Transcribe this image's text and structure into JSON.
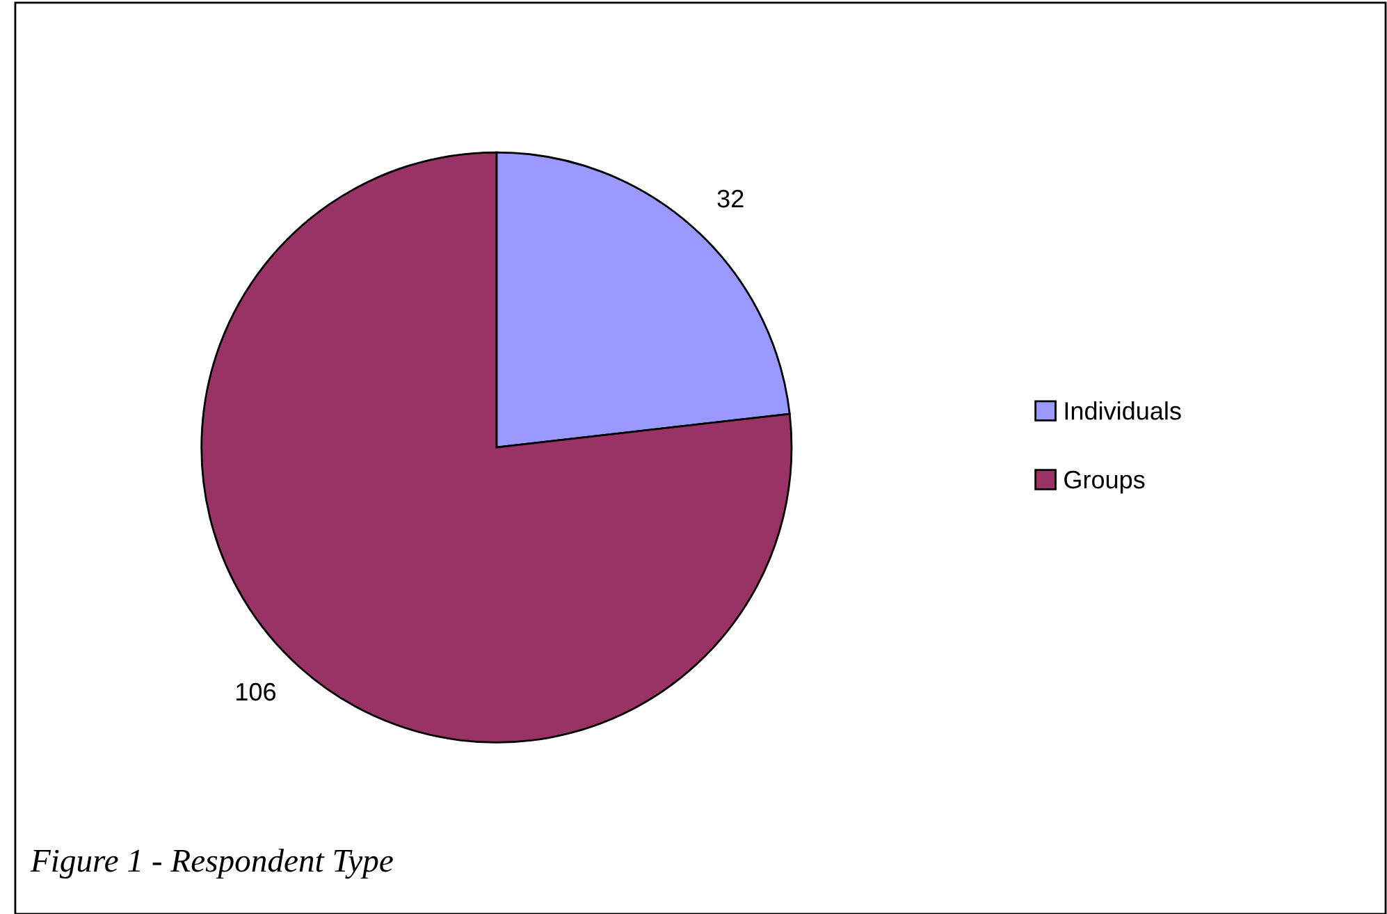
{
  "chart_data": {
    "type": "pie",
    "categories": [
      "Individuals",
      "Groups"
    ],
    "values": [
      32,
      106
    ],
    "colors": [
      "#9999ff",
      "#993366"
    ],
    "data_labels": true,
    "legend": "right",
    "annotations": [
      "Figure 1 - Respondent Type"
    ]
  }
}
